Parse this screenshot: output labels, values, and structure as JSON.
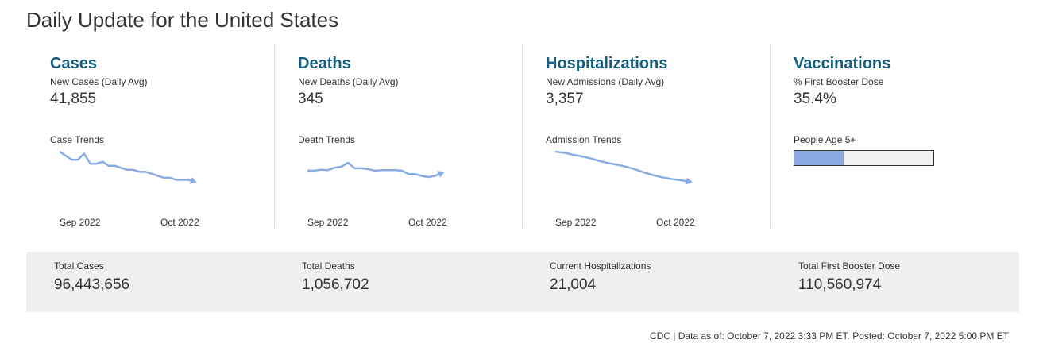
{
  "page": {
    "title": "Daily Update for the United States"
  },
  "colors": {
    "heading": "#135e7c",
    "trend_line": "#8aaae3",
    "totals_bg": "#efefef"
  },
  "panels": [
    {
      "heading": "Cases",
      "sub_label": "New Cases (Daily Avg)",
      "value": "41,855",
      "trend_label": "Case Trends",
      "tick_start": "Sep 2022",
      "tick_end": "Oct 2022",
      "trend_series": [
        60,
        58,
        56,
        56,
        59,
        54,
        54,
        55,
        53,
        53,
        52,
        51,
        51,
        50,
        50,
        49,
        48,
        47,
        47,
        46,
        46,
        46,
        45
      ]
    },
    {
      "heading": "Deaths",
      "sub_label": "New Deaths (Daily Avg)",
      "value": "345",
      "trend_label": "Death Trends",
      "tick_start": "Sep 2022",
      "tick_end": "Oct 2022",
      "trend_series": [
        300,
        300,
        302,
        301,
        306,
        308,
        316,
        305,
        305,
        303,
        300,
        301,
        301,
        301,
        300,
        293,
        293,
        289,
        287,
        290,
        296
      ]
    },
    {
      "heading": "Hospitalizations",
      "sub_label": "New Admissions (Daily Avg)",
      "value": "3,357",
      "trend_label": "Admission Trends",
      "tick_start": "Sep 2022",
      "tick_end": "Oct 2022",
      "trend_series": [
        4500,
        4480,
        4440,
        4410,
        4370,
        4320,
        4280,
        4250,
        4210,
        4160,
        4100,
        4050,
        4010,
        3980,
        3960,
        3930
      ]
    },
    {
      "heading": "Vaccinations",
      "sub_label": "% First Booster Dose",
      "value": "35.4%",
      "bar_label": "People Age 5+",
      "bar_fraction": 0.354
    }
  ],
  "totals": [
    {
      "label": "Total Cases",
      "value": "96,443,656"
    },
    {
      "label": "Total Deaths",
      "value": "1,056,702"
    },
    {
      "label": "Current Hospitalizations",
      "value": "21,004"
    },
    {
      "label": "Total First Booster Dose",
      "value": "110,560,974"
    }
  ],
  "footer": "CDC | Data as of: October 7, 2022 3:33 PM ET. Posted: October 7, 2022 5:00 PM ET"
}
